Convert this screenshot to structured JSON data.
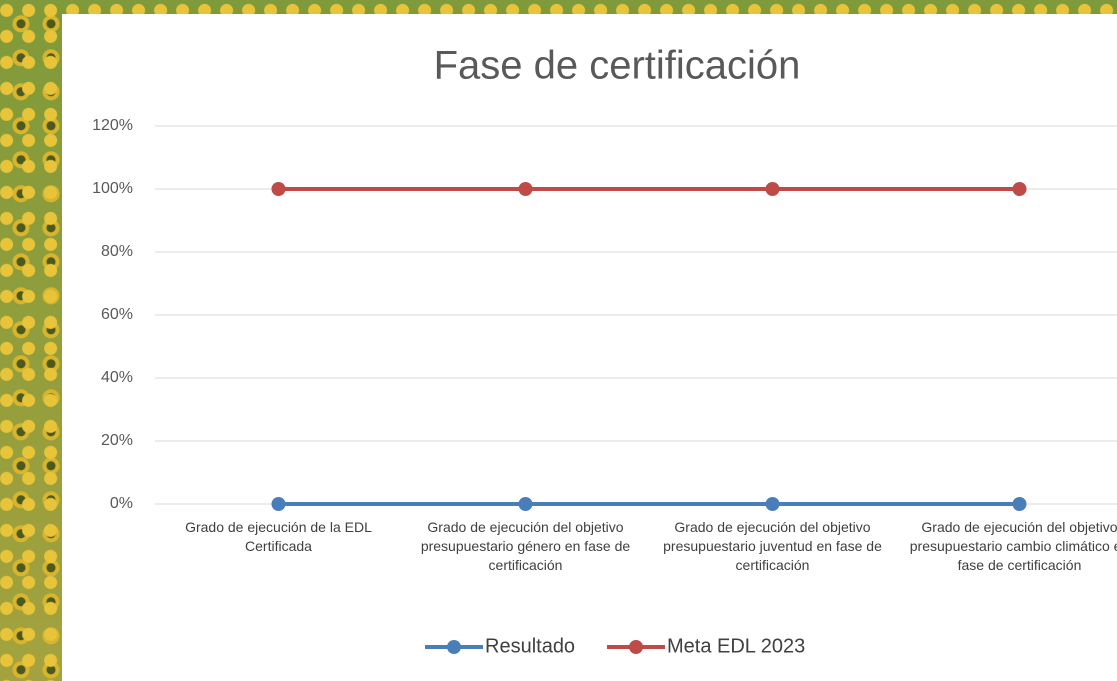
{
  "chart_data": {
    "type": "line",
    "title": "Fase de certificación",
    "categories": [
      "Grado de ejecución de la EDL Certificada",
      "Grado de ejecución del objetivo presupuestario género en fase de certificación",
      "Grado de ejecución del objetivo presupuestario juventud en fase de certificación",
      "Grado de ejecución del objetivo presupuestario cambio climático en fase de certificación"
    ],
    "series": [
      {
        "name": "Resultado",
        "color": "#4a7ebb",
        "values": [
          0,
          0,
          0,
          0
        ]
      },
      {
        "name": "Meta EDL 2023",
        "color": "#be4b48",
        "values": [
          100,
          100,
          100,
          100
        ]
      }
    ],
    "ylim": [
      0,
      120
    ],
    "yticks": [
      {
        "value": 0,
        "label": "0%"
      },
      {
        "value": 20,
        "label": "20%"
      },
      {
        "value": 40,
        "label": "40%"
      },
      {
        "value": 60,
        "label": "60%"
      },
      {
        "value": 80,
        "label": "80%"
      },
      {
        "value": 100,
        "label": "100%"
      },
      {
        "value": 120,
        "label": "120%"
      }
    ],
    "grid": true,
    "legend": "bottom"
  }
}
